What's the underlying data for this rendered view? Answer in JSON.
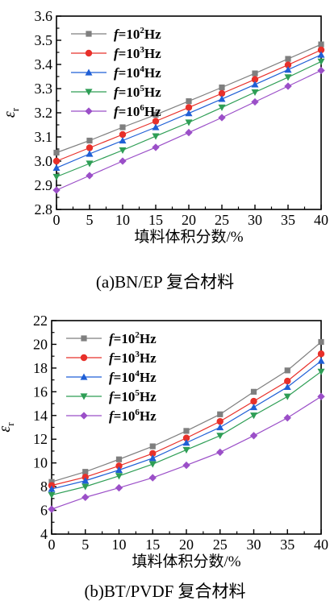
{
  "chart_data": [
    {
      "type": "line",
      "caption": "(a)BN/EP 复合材料",
      "xlabel": "填料体积分数/%",
      "ylabel_main": "ε",
      "ylabel_sub": "r",
      "x": [
        0,
        5,
        10,
        15,
        20,
        25,
        30,
        35,
        40
      ],
      "xlim": [
        0,
        40
      ],
      "ylim": [
        2.8,
        3.6
      ],
      "yticks": [
        2.8,
        2.9,
        3.0,
        3.1,
        3.2,
        3.3,
        3.4,
        3.5,
        3.6
      ],
      "ytick_labels": [
        "2.8",
        "2.9",
        "3.0",
        "3.1",
        "3.2",
        "3.3",
        "3.4",
        "3.5",
        "3.6"
      ],
      "xticks": [
        0,
        5,
        10,
        15,
        20,
        25,
        30,
        35,
        40
      ],
      "xtick_labels": [
        "0",
        "5",
        "10",
        "15",
        "20",
        "25",
        "30",
        "35",
        "40"
      ],
      "legend_position": "top-left",
      "series": [
        {
          "name": "f=10²Hz",
          "label_f": "f",
          "label_eq": "=10",
          "label_exp": "2",
          "label_unit": "Hz",
          "color": "#7f7f7f",
          "marker": "square",
          "values": [
            3.035,
            3.085,
            3.14,
            3.192,
            3.248,
            3.305,
            3.363,
            3.423,
            3.483
          ]
        },
        {
          "name": "f=10³Hz",
          "label_f": "f",
          "label_eq": "=10",
          "label_exp": "3",
          "label_unit": "Hz",
          "color": "#e8302a",
          "marker": "circle",
          "values": [
            3.0,
            3.055,
            3.11,
            3.165,
            3.222,
            3.28,
            3.338,
            3.398,
            3.46
          ]
        },
        {
          "name": "f=10⁴Hz",
          "label_f": "f",
          "label_eq": "=10",
          "label_exp": "4",
          "label_unit": "Hz",
          "color": "#1f5fd6",
          "marker": "triangle-up",
          "values": [
            2.972,
            3.03,
            3.085,
            3.14,
            3.198,
            3.257,
            3.317,
            3.378,
            3.44
          ]
        },
        {
          "name": "f=10⁵Hz",
          "label_f": "f",
          "label_eq": "=10",
          "label_exp": "5",
          "label_unit": "Hz",
          "color": "#2e9e55",
          "marker": "triangle-down",
          "values": [
            2.935,
            2.99,
            3.045,
            3.103,
            3.16,
            3.222,
            3.285,
            3.347,
            3.412
          ]
        },
        {
          "name": "f=10⁶Hz",
          "label_f": "f",
          "label_eq": "=10",
          "label_exp": "6",
          "label_unit": "Hz",
          "color": "#9b4fc8",
          "marker": "diamond",
          "values": [
            2.88,
            2.94,
            3.0,
            3.057,
            3.118,
            3.18,
            3.245,
            3.31,
            3.375
          ]
        }
      ]
    },
    {
      "type": "line",
      "caption": "(b)BT/PVDF 复合材料",
      "xlabel": "填料体积分数/%",
      "ylabel_main": "ε",
      "ylabel_sub": "r",
      "x": [
        0,
        5,
        10,
        15,
        20,
        25,
        30,
        35,
        40
      ],
      "xlim": [
        0,
        40
      ],
      "ylim": [
        4,
        22
      ],
      "yticks": [
        4,
        6,
        8,
        10,
        12,
        14,
        16,
        18,
        20,
        22
      ],
      "ytick_labels": [
        "4",
        "6",
        "8",
        "10",
        "12",
        "14",
        "16",
        "18",
        "20",
        "22"
      ],
      "xticks": [
        0,
        5,
        10,
        15,
        20,
        25,
        30,
        35,
        40
      ],
      "xtick_labels": [
        "0",
        "5",
        "10",
        "15",
        "20",
        "25",
        "30",
        "35",
        "40"
      ],
      "legend_position": "top-left",
      "series": [
        {
          "name": "f=10²Hz",
          "label_f": "f",
          "label_eq": "=10",
          "label_exp": "2",
          "label_unit": "Hz",
          "color": "#7f7f7f",
          "marker": "square",
          "values": [
            8.4,
            9.25,
            10.3,
            11.4,
            12.7,
            14.1,
            16.0,
            17.8,
            20.2
          ]
        },
        {
          "name": "f=10³Hz",
          "label_f": "f",
          "label_eq": "=10",
          "label_exp": "3",
          "label_unit": "Hz",
          "color": "#e8302a",
          "marker": "circle",
          "values": [
            8.1,
            8.8,
            9.75,
            10.8,
            12.1,
            13.5,
            15.2,
            16.9,
            19.2
          ]
        },
        {
          "name": "f=10⁴Hz",
          "label_f": "f",
          "label_eq": "=10",
          "label_exp": "4",
          "label_unit": "Hz",
          "color": "#1f5fd6",
          "marker": "triangle-up",
          "values": [
            7.8,
            8.5,
            9.4,
            10.4,
            11.7,
            13.0,
            14.7,
            16.4,
            18.6
          ]
        },
        {
          "name": "f=10⁵Hz",
          "label_f": "f",
          "label_eq": "=10",
          "label_exp": "5",
          "label_unit": "Hz",
          "color": "#2e9e55",
          "marker": "triangle-down",
          "values": [
            7.3,
            8.0,
            8.9,
            9.9,
            11.1,
            12.3,
            14.0,
            15.6,
            17.7
          ]
        },
        {
          "name": "f=10⁶Hz",
          "label_f": "f",
          "label_eq": "=10",
          "label_exp": "6",
          "label_unit": "Hz",
          "color": "#9b4fc8",
          "marker": "diamond",
          "values": [
            6.1,
            7.1,
            7.9,
            8.75,
            9.8,
            10.9,
            12.3,
            13.8,
            15.6
          ]
        }
      ]
    }
  ]
}
